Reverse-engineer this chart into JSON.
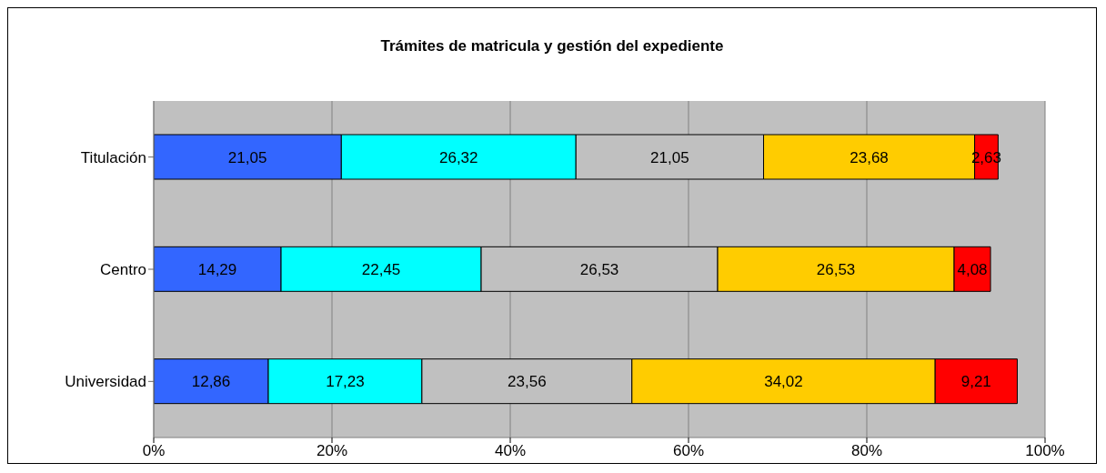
{
  "chart_data": {
    "type": "bar",
    "orientation": "horizontal",
    "stacked": true,
    "title": "Trámites de matricula y gestión del expediente",
    "categories": [
      "Titulación",
      "Centro",
      "Universidad"
    ],
    "series": [
      {
        "color": "#3366ff",
        "values": [
          21.05,
          14.29,
          12.86
        ],
        "value_labels": [
          "21,05",
          "14,29",
          "12,86"
        ]
      },
      {
        "color": "#00ffff",
        "values": [
          26.32,
          22.45,
          17.23
        ],
        "value_labels": [
          "26,32",
          "22,45",
          "17,23"
        ]
      },
      {
        "color": "#c0c0c0",
        "values": [
          21.05,
          26.53,
          23.56
        ],
        "value_labels": [
          "21,05",
          "26,53",
          "23,56"
        ]
      },
      {
        "color": "#ffcc00",
        "values": [
          23.68,
          26.53,
          34.02
        ],
        "value_labels": [
          "23,68",
          "26,53",
          "34,02"
        ]
      },
      {
        "color": "#ff0000",
        "values": [
          2.63,
          4.08,
          9.21
        ],
        "value_labels": [
          "2,63",
          "4,08",
          "9,21"
        ]
      }
    ],
    "xlim": [
      0,
      100
    ],
    "xticks": [
      {
        "value": 0,
        "label": "0%"
      },
      {
        "value": 20,
        "label": "20%"
      },
      {
        "value": 40,
        "label": "40%"
      },
      {
        "value": 60,
        "label": "60%"
      },
      {
        "value": 80,
        "label": "80%"
      },
      {
        "value": 100,
        "label": "100%"
      }
    ],
    "grid": "x"
  }
}
